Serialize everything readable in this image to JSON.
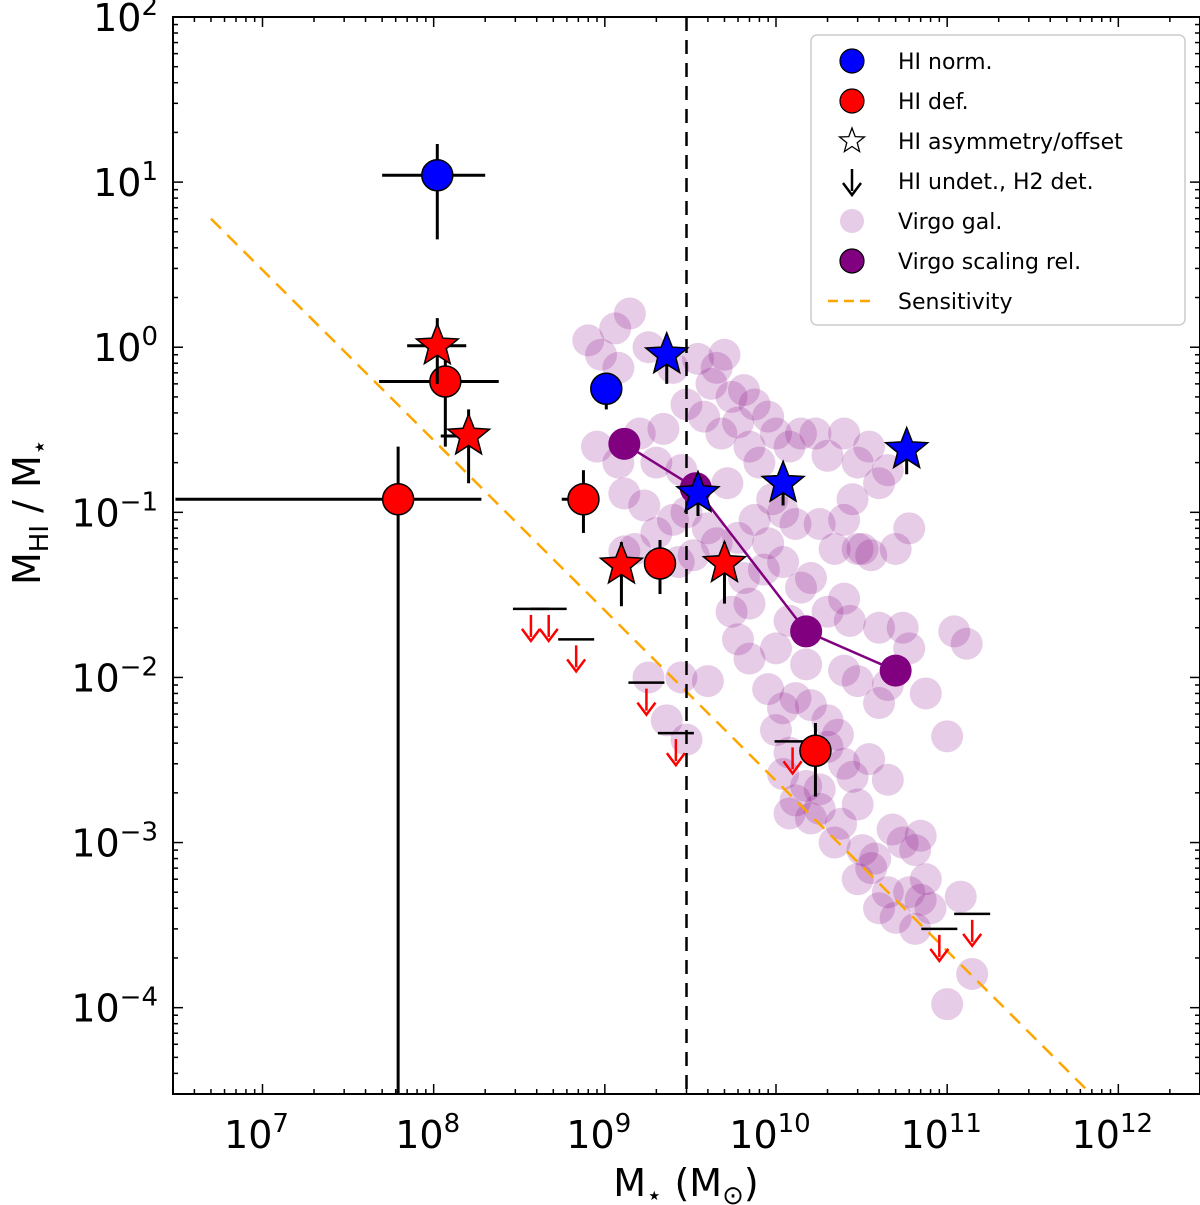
{
  "chart_data": {
    "type": "scatter",
    "x_scale": "log",
    "y_scale": "log",
    "xlim": [
      3000000,
      3000000000000
    ],
    "ylim": [
      3e-05,
      100
    ],
    "x_ticks": [
      {
        "value": 10000000,
        "base": "10",
        "exp": "7"
      },
      {
        "value": 100000000,
        "base": "10",
        "exp": "8"
      },
      {
        "value": 1000000000,
        "base": "10",
        "exp": "9"
      },
      {
        "value": 10000000000,
        "base": "10",
        "exp": "10"
      },
      {
        "value": 100000000000,
        "base": "10",
        "exp": "11"
      },
      {
        "value": 1000000000000,
        "base": "10",
        "exp": "12"
      }
    ],
    "y_ticks": [
      {
        "value": 0.0001,
        "base": "10",
        "exp": "−4"
      },
      {
        "value": 0.001,
        "base": "10",
        "exp": "−3"
      },
      {
        "value": 0.01,
        "base": "10",
        "exp": "−2"
      },
      {
        "value": 0.1,
        "base": "10",
        "exp": "−1"
      },
      {
        "value": 1,
        "base": "10",
        "exp": "0"
      },
      {
        "value": 10,
        "base": "10",
        "exp": "1"
      },
      {
        "value": 100,
        "base": "10",
        "exp": "2"
      }
    ],
    "xlabel": {
      "main": "M",
      "sub": "⋆",
      "unit_open": " (M",
      "unit_sub": "⊙",
      "unit_close": ")"
    },
    "ylabel": {
      "m1": "M",
      "sub1": "HI",
      "slash": " / M",
      "sub2": "⋆"
    },
    "vline_x": 3000000000,
    "colors": {
      "hi_norm": "#0000ff",
      "hi_def": "#ff0000",
      "virgo_gal": "#800080",
      "virgo_gal_alpha": 0.2,
      "virgo_rel": "#800080",
      "sensitivity": "#ffa500",
      "errorbar": "#000000"
    },
    "legend": {
      "position": "top-right",
      "entries": [
        {
          "marker": "circle",
          "color": "#0000ff",
          "label": "HI norm."
        },
        {
          "marker": "circle",
          "color": "#ff0000",
          "label": "HI def."
        },
        {
          "marker": "star-open",
          "color": "#ffffff",
          "label": "HI asymmetry/offset"
        },
        {
          "marker": "arrow",
          "color": "#000000",
          "label": "HI undet., H2 det."
        },
        {
          "marker": "circle-faint",
          "color": "#800080",
          "label": "Virgo gal."
        },
        {
          "marker": "circle",
          "color": "#800080",
          "label": "Virgo scaling rel."
        },
        {
          "marker": "dash",
          "color": "#ffa500",
          "label": "Sensitivity"
        }
      ]
    },
    "sensitivity_line": [
      [
        5000000,
        6.0
      ],
      [
        650000000000,
        3.2e-05
      ]
    ],
    "virgo_scaling": [
      {
        "x": 1300000000,
        "y": 0.26
      },
      {
        "x": 3400000000,
        "y": 0.14
      },
      {
        "x": 15000000000,
        "y": 0.019
      },
      {
        "x": 50000000000,
        "y": 0.011
      }
    ],
    "hi_norm": [
      {
        "x": 105000000,
        "y": 11,
        "marker": "circle",
        "xerr": [
          50000000.0,
          200000000.0
        ],
        "yerr": [
          4.5,
          17
        ]
      },
      {
        "x": 1020000000,
        "y": 0.56,
        "marker": "circle",
        "xerr": [
          850000000.0,
          1020000000.0
        ],
        "yerr": [
          0.42,
          0.7
        ]
      },
      {
        "x": 2300000000,
        "y": 0.9,
        "marker": "star",
        "yerr": [
          0.6,
          1.05
        ]
      },
      {
        "x": 3500000000,
        "y": 0.13,
        "marker": "star",
        "yerr": [
          0.095,
          0.17
        ]
      },
      {
        "x": 11000000000,
        "y": 0.15,
        "marker": "star",
        "yerr": [
          0.11,
          0.18
        ]
      },
      {
        "x": 58000000000,
        "y": 0.24,
        "marker": "star",
        "yerr": [
          0.17,
          0.3
        ]
      }
    ],
    "hi_def": [
      {
        "x": 62000000,
        "y": 0.12,
        "marker": "circle",
        "xerr": [
          3100000.0,
          190000000.0
        ],
        "yerr": [
          3e-05,
          0.25
        ]
      },
      {
        "x": 117000000,
        "y": 0.62,
        "marker": "circle",
        "xerr": [
          48000000.0,
          240000000.0
        ],
        "yerr": [
          0.25,
          1.0
        ]
      },
      {
        "x": 105000000,
        "y": 1.02,
        "marker": "star",
        "xerr": [
          70000000.0,
          155000000.0
        ],
        "yerr": [
          0.6,
          1.5
        ]
      },
      {
        "x": 160000000,
        "y": 0.29,
        "marker": "star",
        "xerr": [
          110000000.0,
          185000000.0
        ],
        "yerr": [
          0.15,
          0.42
        ]
      },
      {
        "x": 750000000,
        "y": 0.12,
        "marker": "circle",
        "xerr": [
          560000000.0,
          880000000.0
        ],
        "yerr": [
          0.075,
          0.18
        ]
      },
      {
        "x": 1250000000,
        "y": 0.048,
        "marker": "star",
        "yerr": [
          0.027,
          0.066
        ]
      },
      {
        "x": 2100000000,
        "y": 0.049,
        "marker": "circle",
        "yerr": [
          0.032,
          0.068
        ]
      },
      {
        "x": 5000000000,
        "y": 0.049,
        "marker": "star",
        "yerr": [
          0.028,
          0.066
        ]
      },
      {
        "x": 17000000000,
        "y": 0.0036,
        "marker": "circle",
        "yerr": [
          0.0019,
          0.0053
        ]
      }
    ],
    "upper_limits": [
      {
        "x": 370000000,
        "y": 0.026
      },
      {
        "x": 470000000,
        "y": 0.026
      },
      {
        "x": 680000000,
        "y": 0.017
      },
      {
        "x": 1750000000,
        "y": 0.0093
      },
      {
        "x": 2600000000,
        "y": 0.0046
      },
      {
        "x": 12500000000,
        "y": 0.0041
      },
      {
        "x": 90000000000,
        "y": 0.0003
      },
      {
        "x": 140000000000,
        "y": 0.00037
      }
    ],
    "virgo_gal": [
      [
        800000000,
        1.1
      ],
      [
        950000000,
        0.9
      ],
      [
        1150000000,
        1.3
      ],
      [
        1400000000,
        1.6
      ],
      [
        1200000000,
        0.75
      ],
      [
        1800000000,
        1.0
      ],
      [
        2500000000,
        0.75
      ],
      [
        3500000000,
        0.85
      ],
      [
        4500000000,
        0.75
      ],
      [
        5000000000,
        0.9
      ],
      [
        4200000000,
        0.6
      ],
      [
        5500000000,
        0.5
      ],
      [
        6500000000,
        0.55
      ],
      [
        7500000000,
        0.45
      ],
      [
        9000000000,
        0.38
      ],
      [
        10000000000,
        0.3
      ],
      [
        12000000000,
        0.25
      ],
      [
        14000000000,
        0.3
      ],
      [
        17000000000,
        0.3
      ],
      [
        20000000000,
        0.22
      ],
      [
        25000000000,
        0.3
      ],
      [
        30000000000,
        0.2
      ],
      [
        35000000000,
        0.25
      ],
      [
        40000000000,
        0.15
      ],
      [
        45000000000,
        0.18
      ],
      [
        28000000000,
        0.12
      ],
      [
        3000000000,
        0.45
      ],
      [
        3800000000,
        0.38
      ],
      [
        2200000000,
        0.32
      ],
      [
        1600000000,
        0.3
      ],
      [
        900000000,
        0.25
      ],
      [
        1200000000,
        0.2
      ],
      [
        2000000000,
        0.2
      ],
      [
        2800000000,
        0.18
      ],
      [
        4800000000,
        0.3
      ],
      [
        6000000000,
        0.35
      ],
      [
        7000000000,
        0.25
      ],
      [
        8000000000,
        0.2
      ],
      [
        5200000000,
        0.15
      ],
      [
        9500000000,
        0.12
      ],
      [
        11000000000,
        0.1
      ],
      [
        13000000000,
        0.085
      ],
      [
        18000000000,
        0.085
      ],
      [
        22000000000,
        0.06
      ],
      [
        30000000000,
        0.06
      ],
      [
        36000000000,
        0.055
      ],
      [
        50000000000,
        0.06
      ],
      [
        60000000000,
        0.08
      ],
      [
        25000000000,
        0.09
      ],
      [
        32000000000,
        0.06
      ],
      [
        1300000000,
        0.13
      ],
      [
        1700000000,
        0.11
      ],
      [
        2500000000,
        0.09
      ],
      [
        3000000000,
        0.1
      ],
      [
        4000000000,
        0.08
      ],
      [
        6000000000,
        0.07
      ],
      [
        7500000000,
        0.09
      ],
      [
        9000000000,
        0.065
      ],
      [
        1300000000,
        0.058
      ],
      [
        1500000000,
        0.06
      ],
      [
        2000000000,
        0.075
      ],
      [
        2700000000,
        0.05
      ],
      [
        3300000000,
        0.055
      ],
      [
        4500000000,
        0.065
      ],
      [
        6500000000,
        0.04
      ],
      [
        8500000000,
        0.045
      ],
      [
        11000000000,
        0.05
      ],
      [
        14000000000,
        0.035
      ],
      [
        16000000000,
        0.04
      ],
      [
        20000000000,
        0.025
      ],
      [
        25000000000,
        0.03
      ],
      [
        5500000000,
        0.025
      ],
      [
        7000000000,
        0.028
      ],
      [
        12000000000,
        0.022
      ],
      [
        27000000000,
        0.022
      ],
      [
        40000000000,
        0.02
      ],
      [
        55000000000,
        0.02
      ],
      [
        60000000000,
        0.015
      ],
      [
        110000000000,
        0.019
      ],
      [
        130000000000,
        0.016
      ],
      [
        6000000000,
        0.017
      ],
      [
        7000000000,
        0.013
      ],
      [
        10000000000,
        0.015
      ],
      [
        15000000000,
        0.012
      ],
      [
        25000000000,
        0.011
      ],
      [
        30000000000,
        0.0095
      ],
      [
        45000000000,
        0.009
      ],
      [
        4000000000,
        0.0095
      ],
      [
        2800000000,
        0.01
      ],
      [
        1800000000,
        0.01
      ],
      [
        9000000000,
        0.0085
      ],
      [
        11000000000,
        0.0065
      ],
      [
        13000000000,
        0.0075
      ],
      [
        16000000000,
        0.0068
      ],
      [
        20000000000,
        0.0055
      ],
      [
        23000000000,
        0.0045
      ],
      [
        40000000000,
        0.007
      ],
      [
        75000000000,
        0.008
      ],
      [
        2300000000,
        0.0055
      ],
      [
        3000000000,
        0.0042
      ],
      [
        10000000000,
        0.0048
      ],
      [
        12000000000,
        0.0035
      ],
      [
        20000000000,
        0.0038
      ],
      [
        25000000000,
        0.003
      ],
      [
        28000000000,
        0.0025
      ],
      [
        35000000000,
        0.0032
      ],
      [
        45000000000,
        0.0024
      ],
      [
        100000000000,
        0.0044
      ],
      [
        11000000000,
        0.0026
      ],
      [
        15000000000,
        0.0022
      ],
      [
        13000000000,
        0.0018
      ],
      [
        16000000000,
        0.0014
      ],
      [
        18000000000,
        0.0016
      ],
      [
        24000000000,
        0.0013
      ],
      [
        30000000000,
        0.0017
      ],
      [
        22000000000,
        0.001
      ],
      [
        32000000000,
        0.0009
      ],
      [
        38000000000,
        0.0008
      ],
      [
        48000000000,
        0.0012
      ],
      [
        55000000000,
        0.001
      ],
      [
        65000000000,
        0.0009
      ],
      [
        70000000000,
        0.0011
      ],
      [
        30000000000,
        0.0006
      ],
      [
        36000000000,
        0.0007
      ],
      [
        45000000000,
        0.0005
      ],
      [
        60000000000,
        0.0005
      ],
      [
        75000000000,
        0.0006
      ],
      [
        50000000000,
        0.00035
      ],
      [
        65000000000,
        0.0003
      ],
      [
        80000000000,
        0.0004
      ],
      [
        120000000000,
        0.00047
      ],
      [
        140000000000,
        0.00016
      ],
      [
        100000000000,
        0.000105
      ],
      [
        12000000000,
        0.0015
      ],
      [
        40000000000,
        0.0004
      ],
      [
        18000000000,
        0.0021
      ],
      [
        70000000000,
        0.00045
      ]
    ]
  }
}
